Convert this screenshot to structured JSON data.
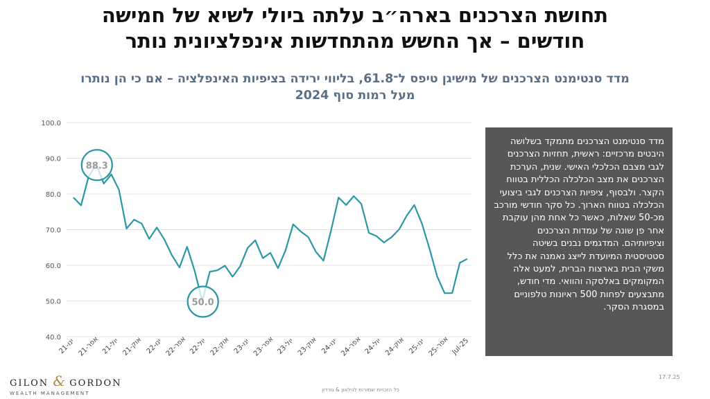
{
  "title_line1": "תחושת הצרכנים בארה״ב עלתה ביולי לשיא של חמישה",
  "title_line2": "חודשים – אך החשש מהתחדשות אינפלציונית נותר",
  "subtitle_line1": "מדד סנטימנט הצרכנים של מישיגן טיפס ל־61.8, בליווי ירידה בציפיות האינפלציה – אם כי הן נותרו",
  "subtitle_line2": "מעל רמות סוף 2024",
  "description": "מדד סנטימנט הצרכנים מתמקד בשלושה היבטים מרכזיים: ראשית, תחזיות הצרכנים לגבי מצבם הכלכלי האישי. שנית, הערכת הצרכנים את מצב הכלכלה הכללית בטווח הקצר. ולבסוף, ציפיות הצרכנים לגבי ביצועי הכלכלה בטווח הארוך. כל סקר חודשי מורכב מכ-50 שאלות, כאשר כל אחת מהן עוקבת אחר פן שונה של עמדות הצרכנים וציפיותיהם. המדגמים נבנים בשיטה סטטיסטית המיועדת לייצג נאמנה את כלל משקי הבית בארצות הברית, למעט אלה המקומקים באלסקה והוואי. מדי חודש, מתבצעים לפחות 500 ראיונות טלפוניים במסגרת הסקר.",
  "logo_left": "GILON",
  "logo_amp": "&",
  "logo_right": "GORDON",
  "logo_sub": "WEALTH MANAGEMENT",
  "copyright": "כל הזכויות שמורות לגילאון & גורדון",
  "date": "17.7.25",
  "colors": {
    "line": "#2a97a3",
    "annotation": "#2a97a3",
    "grid": "#e3e3e3",
    "box": "#575757"
  },
  "chart_data": {
    "type": "line",
    "ylim": [
      40,
      100
    ],
    "yticks": [
      "100.0",
      "90.0",
      "80.0",
      "70.0",
      "60.0",
      "50.0",
      "40.0"
    ],
    "xtick_labels": [
      "ינו-21",
      "אפר-21",
      "יול-21",
      "אוק-21",
      "ינו-22",
      "אפר-22",
      "יול-22",
      "אוק-22",
      "ינו-23",
      "אפר-23",
      "יול-23",
      "אוק-23",
      "ינו-24",
      "אפר-24",
      "יול-24",
      "אוק-24",
      "ינו-25",
      "אפר-25",
      "Jul-25"
    ],
    "values": [
      79.0,
      76.8,
      84.9,
      88.3,
      82.9,
      85.5,
      81.2,
      70.3,
      72.8,
      71.7,
      67.4,
      70.6,
      67.2,
      62.8,
      59.4,
      65.2,
      58.4,
      50.0,
      58.2,
      58.6,
      59.9,
      56.8,
      59.7,
      64.9,
      67.0,
      62.0,
      63.5,
      59.2,
      64.2,
      71.5,
      69.5,
      67.9,
      63.8,
      61.3,
      69.7,
      79.0,
      76.9,
      79.4,
      77.2,
      69.1,
      68.2,
      66.4,
      67.9,
      70.1,
      73.9,
      76.9,
      71.7,
      64.7,
      57.0,
      52.2,
      52.2,
      60.7,
      61.8
    ],
    "annotations": [
      {
        "label": "88.3",
        "index": 3,
        "value": 88.3
      },
      {
        "label": "50.0",
        "index": 17,
        "value": 50.0
      }
    ]
  }
}
